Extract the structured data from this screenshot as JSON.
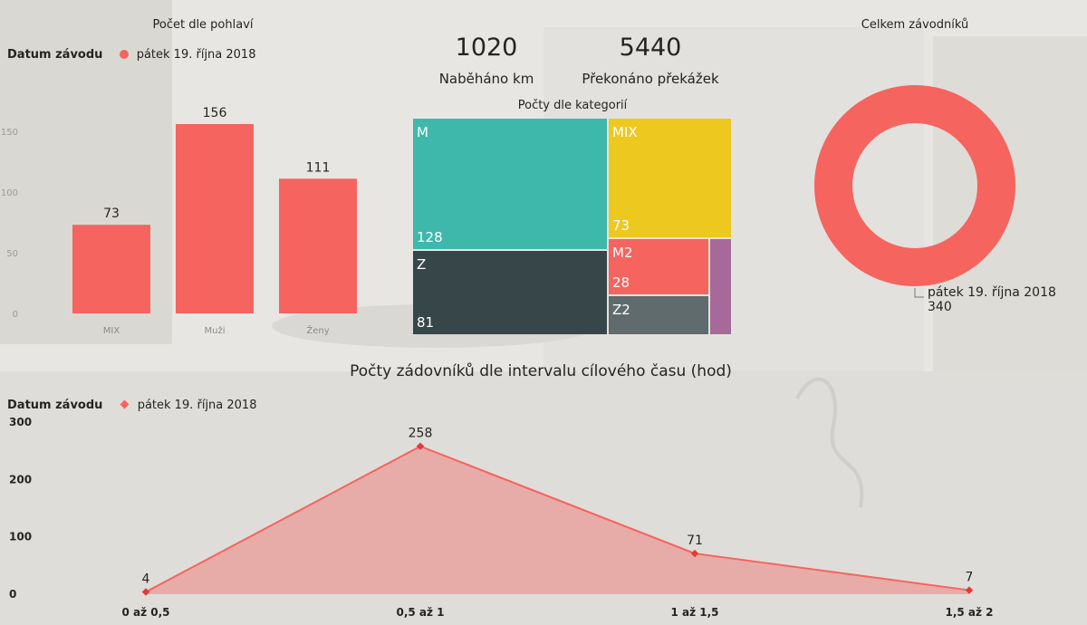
{
  "kpis": [
    {
      "value": "1020",
      "label": "Naběháno km"
    },
    {
      "value": "5440",
      "label": "Překonáno překážek"
    }
  ],
  "legend_key": "Datum závodu",
  "legend_value": "pátek 19. října 2018",
  "colors": {
    "accent": "#F5645F",
    "teal": "#3FB8AC",
    "dark": "#374649",
    "yellow": "#EDC81F",
    "grey": "#5F6B6D",
    "purple": "#A66999"
  },
  "chart_data": [
    {
      "type": "bar",
      "title": "Počet dle pohlaví",
      "categories": [
        "MIX",
        "Muži",
        "Ženy"
      ],
      "values": [
        73,
        156,
        111
      ],
      "ylim": [
        0,
        175
      ],
      "yticks": [
        0,
        50,
        100,
        150
      ],
      "grid": false,
      "legend": "top-left"
    },
    {
      "type": "treemap",
      "title": "Počty dle kategorií",
      "items": [
        {
          "name": "M",
          "value": 128
        },
        {
          "name": "MIX",
          "value": 73
        },
        {
          "name": "Z",
          "value": 81
        },
        {
          "name": "M2",
          "value": 28
        },
        {
          "name": "Z2",
          "value": null
        },
        {
          "name": "",
          "value": null
        }
      ]
    },
    {
      "type": "pie",
      "subtype": "donut",
      "title": "Celkem závodníků",
      "slices": [
        {
          "label": "pátek 19. října 2018",
          "value": 340
        }
      ],
      "legend": "none"
    },
    {
      "type": "area",
      "title": "Počty zádovníků dle intervalu cílového času (hod)",
      "categories": [
        "0 až 0,5",
        "0,5 až 1",
        "1 až 1,5",
        "1,5 až 2"
      ],
      "values": [
        4,
        258,
        71,
        7
      ],
      "ylim": [
        0,
        300
      ],
      "yticks": [
        0,
        100,
        200,
        300
      ],
      "grid": false,
      "legend": "top-left"
    }
  ]
}
